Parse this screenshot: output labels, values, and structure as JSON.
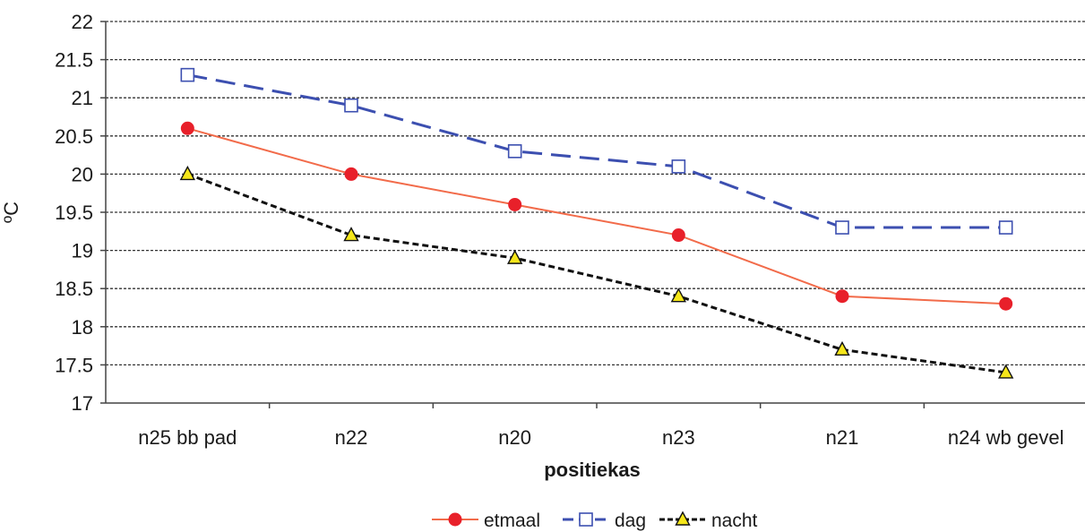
{
  "chart_data": {
    "type": "line",
    "title": "",
    "xlabel": "positiekas",
    "ylabel": "ºC",
    "ylim": [
      17,
      22
    ],
    "ytick_step": 0.5,
    "yticks": [
      "17",
      "17.5",
      "18",
      "18.5",
      "19",
      "19.5",
      "20",
      "20.5",
      "21",
      "21.5",
      "22"
    ],
    "grid": "horizontal dotted",
    "legend_position": "bottom",
    "categories": [
      "n25 bb pad",
      "n22",
      "n20",
      "n23",
      "n21",
      "n24 wb gevel"
    ],
    "series": [
      {
        "name": "etmaal",
        "values": [
          20.6,
          20.0,
          19.6,
          19.2,
          18.4,
          18.3
        ],
        "color": "#f26b4a",
        "marker": "circle",
        "marker_color": "#e8202a",
        "line_style": "solid"
      },
      {
        "name": "dag",
        "values": [
          21.3,
          20.9,
          20.3,
          20.1,
          19.3,
          19.3
        ],
        "color": "#3c4fb0",
        "marker": "square",
        "marker_color": "#3c4fb0",
        "line_style": "dashed"
      },
      {
        "name": "nacht",
        "values": [
          20.0,
          19.2,
          18.9,
          18.4,
          17.7,
          17.4
        ],
        "color": "#111111",
        "marker": "triangle",
        "marker_color": "#f5e61a",
        "line_style": "dotted"
      }
    ]
  }
}
